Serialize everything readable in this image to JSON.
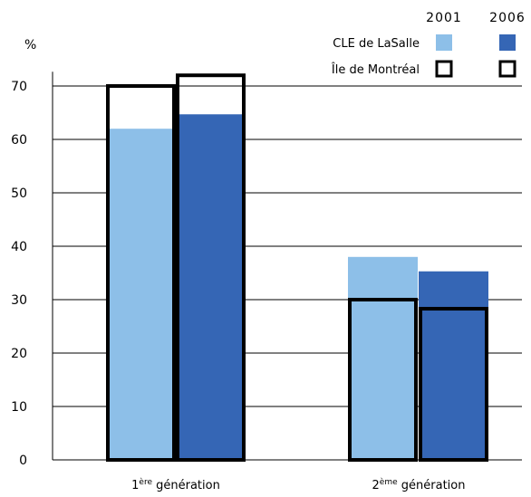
{
  "chart_data": {
    "type": "bar",
    "ylabel": "%",
    "ylim": [
      0,
      70
    ],
    "yticks": [
      0,
      10,
      20,
      30,
      40,
      50,
      60,
      70
    ],
    "grid": true,
    "categories": [
      {
        "label": "1",
        "sup": "ère",
        "rest": " génération"
      },
      {
        "label": "2",
        "sup": "ème",
        "rest": " génération"
      }
    ],
    "legend": {
      "placement": "top-right",
      "years": [
        "2001",
        "2006"
      ],
      "rows": [
        "CLE de LaSalle",
        "Île de Montréal"
      ]
    },
    "series": [
      {
        "name": "CLE de LaSalle",
        "year": "2001",
        "color": "#8DBFE8",
        "values": [
          62,
          38
        ]
      },
      {
        "name": "CLE de LaSalle",
        "year": "2006",
        "color": "#3566B5",
        "values": [
          64.7,
          35.3
        ]
      },
      {
        "name": "Île de Montréal",
        "year": "2001",
        "color": "#000000",
        "values": [
          70,
          30
        ]
      },
      {
        "name": "Île de Montréal",
        "year": "2006",
        "color": "#000000",
        "values": [
          72,
          28.3
        ]
      }
    ]
  }
}
